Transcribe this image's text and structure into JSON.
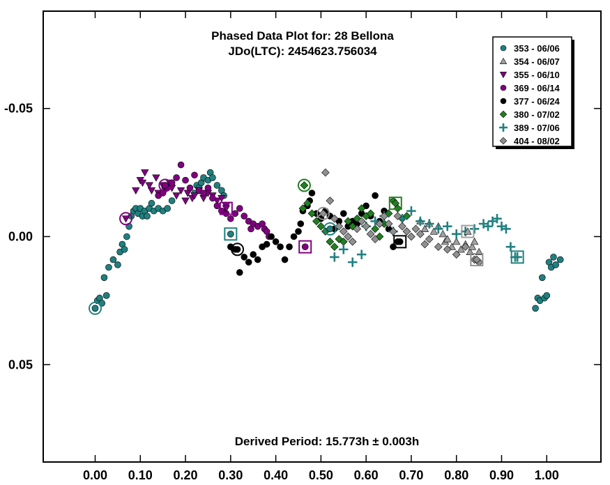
{
  "chart_data": {
    "type": "scatter",
    "title": "Phased Data Plot for: 28 Bellona",
    "subtitle": "JDo(LTC): 2454623.756034",
    "footer": "Derived Period: 15.773h  ± 0.003h",
    "xlabel": "",
    "ylabel": "",
    "xlim": [
      -0.115,
      1.12
    ],
    "ylim": [
      -0.088,
      0.088
    ],
    "y_inverted": true,
    "x_ticks": [
      0.0,
      0.1,
      0.2,
      0.3,
      0.4,
      0.5,
      0.6,
      0.7,
      0.8,
      0.9,
      1.0
    ],
    "x_tick_labels": [
      "0.00",
      "0.10",
      "0.20",
      "0.30",
      "0.40",
      "0.50",
      "0.60",
      "0.70",
      "0.80",
      "0.90",
      "1.00"
    ],
    "y_ticks": [
      -0.05,
      0.0,
      0.05
    ],
    "y_tick_labels": [
      "-0.05",
      "0.00",
      "0.05"
    ],
    "grid": false,
    "legend_position": "top-right",
    "series": [
      {
        "name": "353 - 06/06",
        "marker": "circle",
        "color": "#208080",
        "points": [
          [
            0.0,
            0.028
          ],
          [
            0.005,
            0.025
          ],
          [
            0.01,
            0.024
          ],
          [
            0.015,
            0.026
          ],
          [
            0.02,
            0.016
          ],
          [
            0.025,
            0.023
          ],
          [
            0.03,
            0.012
          ],
          [
            0.04,
            0.009
          ],
          [
            0.05,
            0.011
          ],
          [
            0.055,
            0.006
          ],
          [
            0.06,
            0.003
          ],
          [
            0.065,
            0.005
          ],
          [
            0.07,
            0.0
          ],
          [
            0.075,
            -0.004
          ],
          [
            0.08,
            -0.008
          ],
          [
            0.085,
            -0.01
          ],
          [
            0.09,
            -0.011
          ],
          [
            0.095,
            -0.009
          ],
          [
            0.1,
            -0.011
          ],
          [
            0.105,
            -0.008
          ],
          [
            0.11,
            -0.01
          ],
          [
            0.115,
            -0.008
          ],
          [
            0.12,
            -0.011
          ],
          [
            0.125,
            -0.013
          ],
          [
            0.13,
            -0.01
          ],
          [
            0.14,
            -0.011
          ],
          [
            0.15,
            -0.01
          ],
          [
            0.16,
            -0.011
          ],
          [
            0.17,
            -0.014
          ],
          [
            0.22,
            -0.017
          ],
          [
            0.225,
            -0.02
          ],
          [
            0.23,
            -0.019
          ],
          [
            0.235,
            -0.021
          ],
          [
            0.24,
            -0.023
          ],
          [
            0.25,
            -0.022
          ],
          [
            0.255,
            -0.025
          ],
          [
            0.26,
            -0.023
          ],
          [
            0.27,
            -0.02
          ],
          [
            0.28,
            -0.018
          ],
          [
            0.285,
            -0.016
          ],
          [
            0.975,
            0.028
          ],
          [
            0.98,
            0.024
          ],
          [
            0.985,
            0.025
          ],
          [
            0.99,
            0.016
          ],
          [
            0.995,
            0.024
          ],
          [
            1.0,
            0.023
          ],
          [
            1.005,
            0.01
          ],
          [
            1.01,
            0.012
          ],
          [
            1.015,
            0.008
          ],
          [
            1.02,
            0.011
          ],
          [
            1.03,
            0.009
          ]
        ]
      },
      {
        "name": "354 - 06/07",
        "marker": "triangle",
        "color": "#a0a0a0",
        "points": [
          [
            0.72,
            -0.006
          ],
          [
            0.73,
            -0.003
          ],
          [
            0.74,
            -0.005
          ],
          [
            0.75,
            -0.002
          ],
          [
            0.76,
            -0.004
          ],
          [
            0.77,
            -0.001
          ],
          [
            0.775,
            0.002
          ],
          [
            0.78,
            0.001
          ],
          [
            0.79,
            0.004
          ],
          [
            0.8,
            0.002
          ],
          [
            0.81,
            0.005
          ],
          [
            0.82,
            0.003
          ],
          [
            0.83,
            0.006
          ],
          [
            0.835,
            0.004
          ],
          [
            0.84,
            0.002
          ],
          [
            0.85,
            0.006
          ]
        ]
      },
      {
        "name": "355 - 06/10",
        "marker": "triangle-down",
        "color": "#800080",
        "points": [
          [
            0.09,
            -0.018
          ],
          [
            0.1,
            -0.022
          ],
          [
            0.105,
            -0.021
          ],
          [
            0.11,
            -0.025
          ],
          [
            0.12,
            -0.02
          ],
          [
            0.125,
            -0.018
          ],
          [
            0.135,
            -0.023
          ],
          [
            0.14,
            -0.017
          ],
          [
            0.15,
            -0.02
          ],
          [
            0.155,
            -0.018
          ],
          [
            0.165,
            -0.021
          ],
          [
            0.17,
            -0.019
          ],
          [
            0.18,
            -0.016
          ],
          [
            0.19,
            -0.018
          ],
          [
            0.2,
            -0.014
          ],
          [
            0.205,
            -0.017
          ],
          [
            0.215,
            -0.015
          ],
          [
            0.22,
            -0.016
          ],
          [
            0.23,
            -0.018
          ],
          [
            0.24,
            -0.015
          ],
          [
            0.25,
            -0.017
          ],
          [
            0.26,
            -0.016
          ],
          [
            0.27,
            -0.014
          ],
          [
            0.28,
            -0.015
          ],
          [
            0.29,
            -0.012
          ]
        ]
      },
      {
        "name": "369 - 06/14",
        "marker": "circle",
        "color": "#800080",
        "points": [
          [
            0.14,
            -0.016
          ],
          [
            0.15,
            -0.017
          ],
          [
            0.16,
            -0.019
          ],
          [
            0.17,
            -0.021
          ],
          [
            0.18,
            -0.023
          ],
          [
            0.19,
            -0.028
          ],
          [
            0.2,
            -0.022
          ],
          [
            0.21,
            -0.019
          ],
          [
            0.22,
            -0.024
          ],
          [
            0.23,
            -0.018
          ],
          [
            0.24,
            -0.017
          ],
          [
            0.25,
            -0.019
          ],
          [
            0.26,
            -0.015
          ],
          [
            0.27,
            -0.012
          ],
          [
            0.28,
            -0.01
          ],
          [
            0.29,
            -0.009
          ],
          [
            0.3,
            -0.007
          ],
          [
            0.31,
            -0.009
          ],
          [
            0.32,
            -0.011
          ],
          [
            0.33,
            -0.008
          ],
          [
            0.34,
            -0.006
          ],
          [
            0.345,
            -0.003
          ],
          [
            0.35,
            -0.005
          ],
          [
            0.36,
            -0.004
          ],
          [
            0.37,
            -0.005
          ],
          [
            0.375,
            -0.003
          ],
          [
            0.38,
            -0.002
          ],
          [
            0.385,
            0.0
          ]
        ]
      },
      {
        "name": "377 - 06/24",
        "marker": "circle",
        "color": "#000000",
        "points": [
          [
            0.3,
            0.004
          ],
          [
            0.31,
            0.005
          ],
          [
            0.32,
            0.014
          ],
          [
            0.33,
            0.008
          ],
          [
            0.34,
            0.01
          ],
          [
            0.35,
            0.007
          ],
          [
            0.36,
            0.009
          ],
          [
            0.37,
            0.004
          ],
          [
            0.38,
            0.003
          ],
          [
            0.39,
            0.0
          ],
          [
            0.4,
            0.002
          ],
          [
            0.41,
            0.004
          ],
          [
            0.42,
            0.009
          ],
          [
            0.43,
            0.004
          ],
          [
            0.44,
            0.0
          ],
          [
            0.45,
            -0.002
          ],
          [
            0.455,
            -0.005
          ],
          [
            0.46,
            -0.01
          ],
          [
            0.47,
            -0.012
          ],
          [
            0.475,
            -0.014
          ],
          [
            0.48,
            -0.017
          ],
          [
            0.49,
            -0.009
          ],
          [
            0.5,
            -0.007
          ],
          [
            0.51,
            -0.01
          ],
          [
            0.52,
            -0.008
          ],
          [
            0.53,
            -0.003
          ],
          [
            0.54,
            -0.006
          ],
          [
            0.55,
            -0.009
          ],
          [
            0.56,
            -0.004
          ],
          [
            0.57,
            -0.006
          ],
          [
            0.58,
            -0.005
          ],
          [
            0.59,
            -0.009
          ],
          [
            0.6,
            -0.012
          ],
          [
            0.61,
            -0.008
          ],
          [
            0.62,
            -0.016
          ],
          [
            0.63,
            -0.006
          ],
          [
            0.64,
            -0.01
          ],
          [
            0.65,
            -0.003
          ],
          [
            0.66,
            0.004
          ],
          [
            0.67,
            0.002
          ]
        ]
      },
      {
        "name": "380 - 07/02",
        "marker": "diamond",
        "color": "#208020",
        "points": [
          [
            0.46,
            -0.011
          ],
          [
            0.47,
            -0.013
          ],
          [
            0.48,
            -0.009
          ],
          [
            0.49,
            -0.006
          ],
          [
            0.5,
            -0.004
          ],
          [
            0.51,
            -0.002
          ],
          [
            0.52,
            0.002
          ],
          [
            0.53,
            0.004
          ],
          [
            0.54,
            0.001
          ],
          [
            0.55,
            0.002
          ],
          [
            0.56,
            -0.006
          ],
          [
            0.57,
            -0.004
          ],
          [
            0.58,
            -0.007
          ],
          [
            0.59,
            -0.011
          ],
          [
            0.6,
            -0.008
          ],
          [
            0.61,
            -0.009
          ],
          [
            0.62,
            -0.003
          ],
          [
            0.63,
            0.0
          ],
          [
            0.64,
            -0.005
          ],
          [
            0.65,
            -0.009
          ],
          [
            0.66,
            -0.014
          ],
          [
            0.67,
            -0.011
          ],
          [
            0.68,
            -0.007
          ],
          [
            0.69,
            -0.008
          ]
        ]
      },
      {
        "name": "389 - 07/06",
        "marker": "plus",
        "color": "#208080",
        "points": [
          [
            0.53,
            0.008
          ],
          [
            0.55,
            0.005
          ],
          [
            0.57,
            0.01
          ],
          [
            0.59,
            0.007
          ],
          [
            0.6,
            -0.004
          ],
          [
            0.62,
            -0.006
          ],
          [
            0.64,
            -0.008
          ],
          [
            0.66,
            -0.002
          ],
          [
            0.68,
            -0.007
          ],
          [
            0.7,
            -0.01
          ],
          [
            0.72,
            -0.006
          ],
          [
            0.74,
            -0.005
          ],
          [
            0.76,
            -0.003
          ],
          [
            0.78,
            -0.004
          ],
          [
            0.8,
            -0.001
          ],
          [
            0.82,
            -0.002
          ],
          [
            0.84,
            -0.003
          ],
          [
            0.86,
            -0.005
          ],
          [
            0.87,
            -0.004
          ],
          [
            0.88,
            -0.006
          ],
          [
            0.89,
            -0.007
          ],
          [
            0.9,
            -0.004
          ],
          [
            0.91,
            -0.003
          ],
          [
            0.92,
            0.004
          ],
          [
            0.93,
            0.008
          ]
        ]
      },
      {
        "name": "404 - 08/02",
        "marker": "diamond",
        "color": "#909090",
        "points": [
          [
            0.51,
            -0.025
          ],
          [
            0.52,
            -0.014
          ],
          [
            0.53,
            -0.007
          ],
          [
            0.54,
            -0.004
          ],
          [
            0.55,
            -0.002
          ],
          [
            0.56,
            0.0
          ],
          [
            0.57,
            0.002
          ],
          [
            0.58,
            -0.003
          ],
          [
            0.59,
            -0.006
          ],
          [
            0.6,
            -0.004
          ],
          [
            0.61,
            -0.001
          ],
          [
            0.62,
            0.001
          ],
          [
            0.63,
            -0.005
          ],
          [
            0.64,
            -0.008
          ],
          [
            0.65,
            -0.005
          ],
          [
            0.66,
            -0.002
          ],
          [
            0.67,
            -0.008
          ],
          [
            0.68,
            -0.004
          ],
          [
            0.69,
            -0.002
          ],
          [
            0.7,
            0.0
          ],
          [
            0.71,
            -0.003
          ],
          [
            0.72,
            -0.001
          ],
          [
            0.73,
            0.003
          ],
          [
            0.74,
            0.001
          ],
          [
            0.76,
            0.004
          ],
          [
            0.78,
            0.005
          ],
          [
            0.8,
            0.007
          ],
          [
            0.82,
            0.004
          ],
          [
            0.84,
            0.009
          ],
          [
            0.85,
            0.01
          ]
        ]
      }
    ],
    "highlighted_points": [
      {
        "series": "353 - 06/06",
        "ring": "circle",
        "x": 0.0,
        "y": 0.028
      },
      {
        "series": "355 - 06/10",
        "ring": "circle",
        "x": 0.068,
        "y": -0.007
      },
      {
        "series": "369 - 06/14",
        "ring": "circle",
        "x": 0.155,
        "y": -0.02
      },
      {
        "series": "355 - 06/10",
        "ring": "square",
        "x": 0.29,
        "y": -0.011
      },
      {
        "series": "353 - 06/06",
        "ring": "square",
        "x": 0.3,
        "y": -0.001
      },
      {
        "series": "377 - 06/24",
        "ring": "circle",
        "x": 0.315,
        "y": 0.005
      },
      {
        "series": "369 - 06/14",
        "ring": "square",
        "x": 0.465,
        "y": 0.004
      },
      {
        "series": "380 - 07/02",
        "ring": "circle",
        "x": 0.463,
        "y": -0.02
      },
      {
        "series": "404 - 08/02",
        "ring": "circle",
        "x": 0.505,
        "y": -0.009
      },
      {
        "series": "353 - 06/06",
        "ring": "circle",
        "x": 0.52,
        "y": -0.003
      },
      {
        "series": "380 - 07/02",
        "ring": "square",
        "x": 0.665,
        "y": -0.013
      },
      {
        "series": "377 - 06/24",
        "ring": "square",
        "x": 0.675,
        "y": 0.002
      },
      {
        "series": "354 - 06/07",
        "ring": "square",
        "x": 0.825,
        "y": -0.002
      },
      {
        "series": "404 - 08/02",
        "ring": "square",
        "x": 0.845,
        "y": 0.009
      },
      {
        "series": "389 - 07/06",
        "ring": "square",
        "x": 0.935,
        "y": 0.008
      }
    ]
  }
}
